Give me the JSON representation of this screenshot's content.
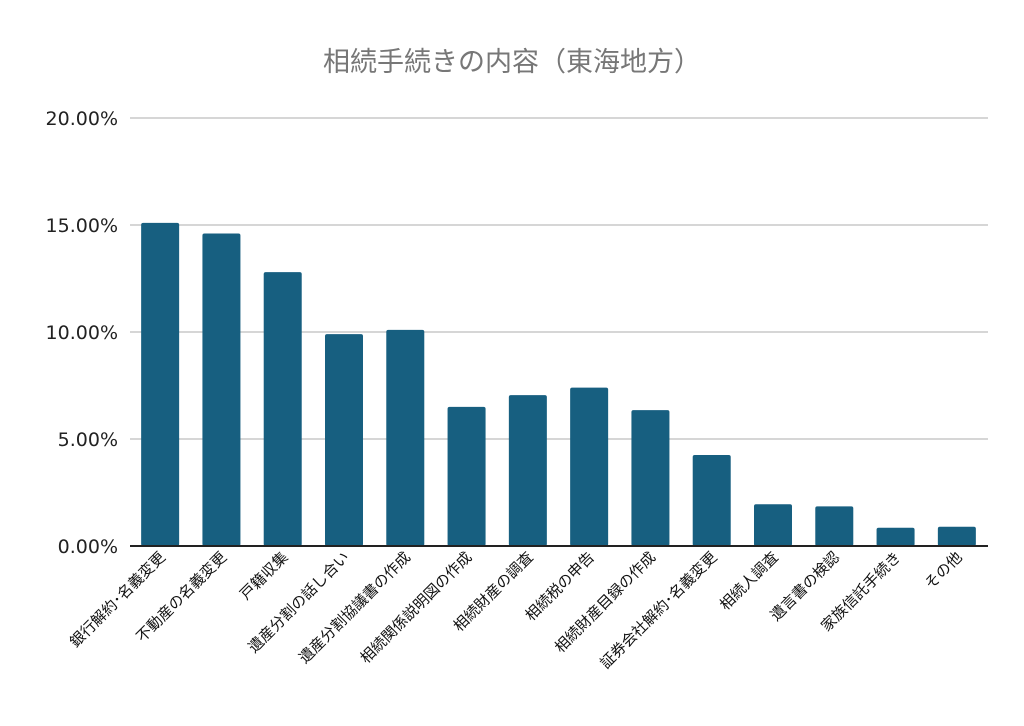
{
  "chart_data": {
    "type": "bar",
    "title": "相続手続きの内容（東海地方）",
    "xlabel": "",
    "ylabel": "",
    "ylim": [
      0,
      20
    ],
    "grid": true,
    "legend": "none",
    "yticks": [
      "0.00%",
      "5.00%",
      "10.00%",
      "15.00%",
      "20.00%"
    ],
    "categories": [
      "銀行解約･名義変更",
      "不動産の名義変更",
      "戸籍収集",
      "遺産分割の話し合い",
      "遺産分割協議書の作成",
      "相続関係説明図の作成",
      "相続財産の調査",
      "相続税の申告",
      "相続財産目録の作成",
      "証券会社解約･名義変更",
      "相続人調査",
      "遺言書の検認",
      "家族信託手続き",
      "その他"
    ],
    "values": [
      15.1,
      14.6,
      12.8,
      9.9,
      10.1,
      6.5,
      7.05,
      7.4,
      6.35,
      4.25,
      1.95,
      1.85,
      0.85,
      0.9
    ],
    "colors": {
      "bar": "#175f80",
      "grid": "#c8c8c8",
      "axis": "#222222"
    }
  }
}
